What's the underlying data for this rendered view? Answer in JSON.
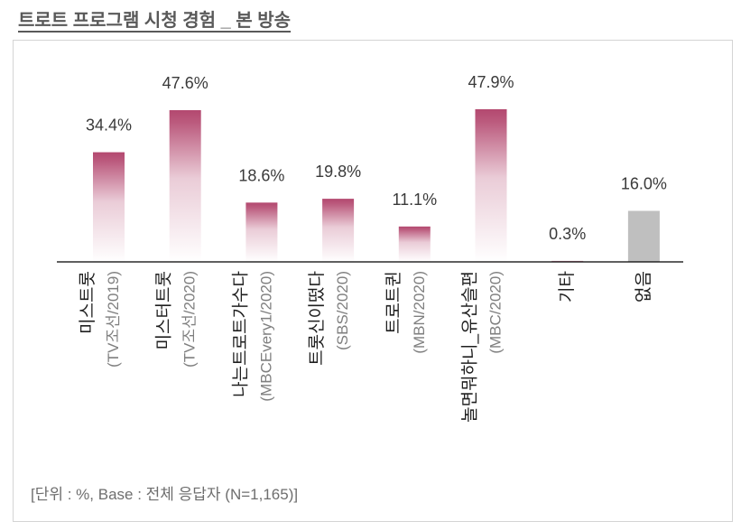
{
  "chart_data": {
    "type": "bar",
    "title": "트로트 프로그램 시청 경험 _ 본 방송",
    "categories": [
      "미스트롯",
      "미스터트롯",
      "나는트로트가수다",
      "트롯신이떴다",
      "트로트퀸",
      "놀면뭐하니_유산슬편",
      "기타",
      "없음"
    ],
    "category_sublabels": [
      "(TV조선/2019)",
      "(TV조선/2020)",
      "(MBCEvery1/2020)",
      "(SBS/2020)",
      "(MBN/2020)",
      "(MBC/2020)",
      "",
      ""
    ],
    "values": [
      34.4,
      47.6,
      18.6,
      19.8,
      11.1,
      47.9,
      0.3,
      16.0
    ],
    "value_labels": [
      "34.4%",
      "47.6%",
      "18.6%",
      "19.8%",
      "11.1%",
      "47.9%",
      "0.3%",
      "16.0%"
    ],
    "note": "[단위 : %, Base : 전체 응답자 (N=1,165)]",
    "grid": false,
    "bar_top_colors": [
      "#b3486f",
      "#b3486f",
      "#b3486f",
      "#b3486f",
      "#b3486f",
      "#b3486f",
      "#b3486f",
      "#bfbfbf"
    ],
    "bar_bottom_colors": [
      "#ffffff",
      "#ffffff",
      "#ffffff",
      "#ffffff",
      "#ffffff",
      "#ffffff",
      "#ffffff",
      "#bfbfbf"
    ],
    "axis_color": "#000000"
  }
}
